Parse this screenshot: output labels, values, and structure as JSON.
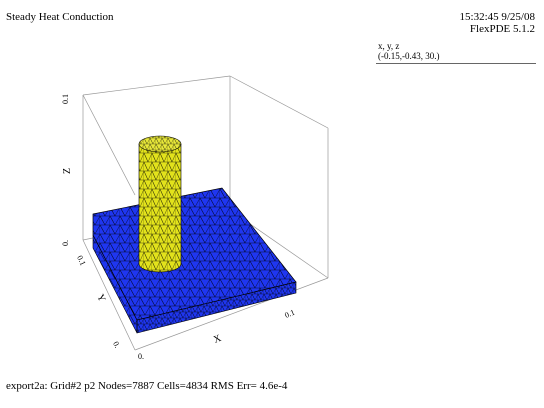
{
  "header": {
    "title": "Steady Heat Conduction",
    "timestamp": "15:32:45 9/25/08",
    "version": "FlexPDE 5.1.2"
  },
  "legend": {
    "header": "x, y, z",
    "value": "(-0.15,-0.43, 30.)"
  },
  "axes": {
    "z_label": "Z",
    "z_max": "0.1",
    "z_min": "0.",
    "y_label": "Y",
    "y_max": "0.1",
    "y_min": "0.",
    "x_label": "X",
    "x_max": "0.1",
    "x_min": "0."
  },
  "colors": {
    "slab": "#1f36f0",
    "cylinder": "#e2e21c",
    "mesh": "#000000",
    "frame": "#999999"
  },
  "footer": {
    "status": "export2a:  Grid#2  p2  Nodes=7887 Cells=4834 RMS Err= 4.6e-4"
  }
}
